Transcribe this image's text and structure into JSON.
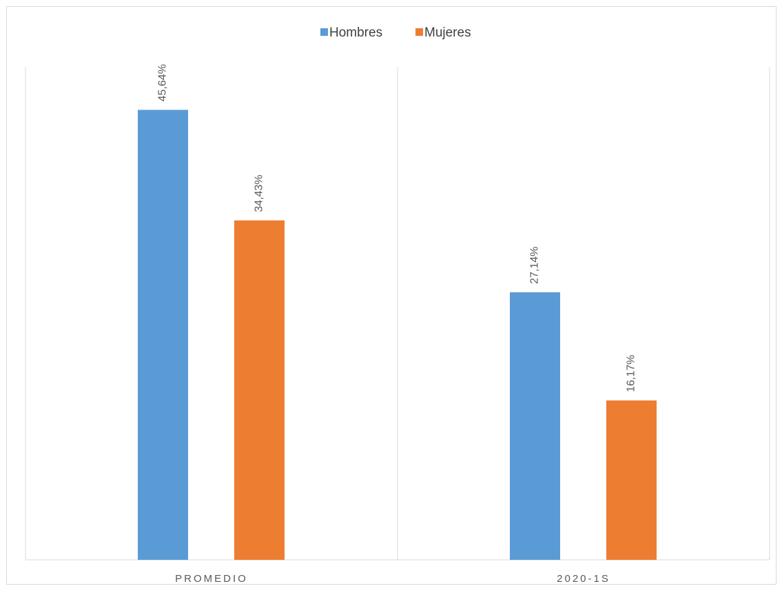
{
  "chart_data": {
    "type": "bar",
    "categories": [
      "PROMEDIO",
      "2020-1S"
    ],
    "series": [
      {
        "name": "Hombres",
        "color": "#5b9bd5",
        "values": [
          45.64,
          27.14
        ],
        "value_labels": [
          "45,64%",
          "27,14%"
        ]
      },
      {
        "name": "Mujeres",
        "color": "#ed7d31",
        "values": [
          34.43,
          16.17
        ],
        "value_labels": [
          "34,43%",
          "16,17%"
        ]
      }
    ],
    "ylim": [
      0,
      50
    ],
    "legend": "top"
  }
}
